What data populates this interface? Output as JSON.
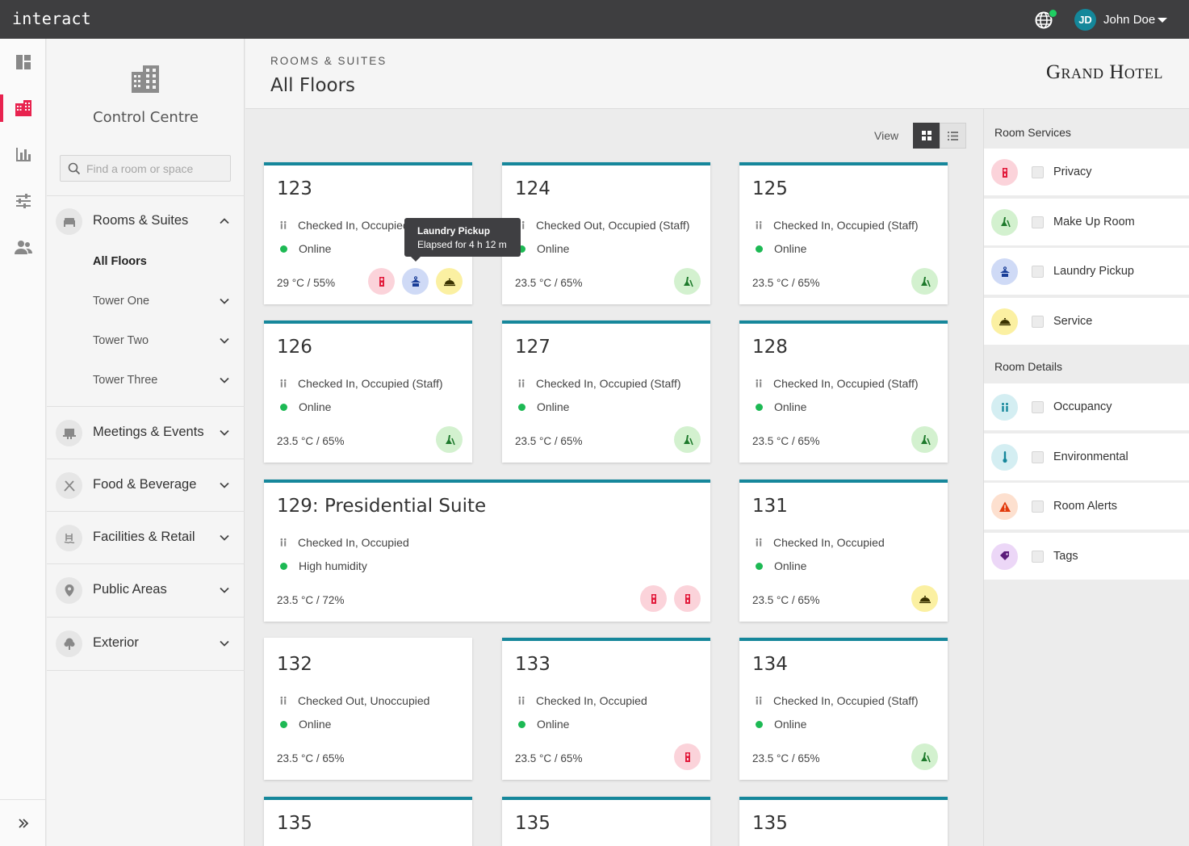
{
  "app": {
    "brand": "interact"
  },
  "user": {
    "initials": "JD",
    "name": "John Doe"
  },
  "nav": {
    "title": "Control Centre",
    "search_placeholder": "Find a room or space",
    "sections": [
      {
        "label": "Rooms & Suites",
        "icon": "bed-icon",
        "expanded": true,
        "subitems": [
          "All Floors",
          "Tower One",
          "Tower Two",
          "Tower Three"
        ]
      },
      {
        "label": "Meetings & Events",
        "icon": "presentation-icon"
      },
      {
        "label": "Food & Beverage",
        "icon": "utensils-icon"
      },
      {
        "label": "Facilities & Retail",
        "icon": "pool-icon"
      },
      {
        "label": "Public Areas",
        "icon": "location-pin-icon"
      },
      {
        "label": "Exterior",
        "icon": "tree-icon"
      }
    ]
  },
  "header": {
    "breadcrumb": "ROOMS & SUITES",
    "title": "All Floors",
    "logo_grand": "Grand",
    "logo_hotel": "Hotel"
  },
  "view": {
    "label": "View"
  },
  "cards": [
    {
      "number": "123",
      "status": "Checked In, Occupied",
      "connection": "Online",
      "env": "29 °C / 55%",
      "badges": [
        "privacy",
        "laundry",
        "service"
      ]
    },
    {
      "number": "124",
      "status": "Checked Out, Occupied (Staff)",
      "connection": "Online",
      "env": "23.5 °C / 65%",
      "badges": [
        "makeup"
      ]
    },
    {
      "number": "125",
      "status": "Checked In, Occupied (Staff)",
      "connection": "Online",
      "env": "23.5 °C / 65%",
      "badges": [
        "makeup"
      ]
    },
    {
      "number": "126",
      "status": "Checked In, Occupied (Staff)",
      "connection": "Online",
      "env": "23.5 °C / 65%",
      "badges": [
        "makeup"
      ]
    },
    {
      "number": "127",
      "status": "Checked In, Occupied (Staff)",
      "connection": "Online",
      "env": "23.5 °C / 65%",
      "badges": [
        "makeup"
      ]
    },
    {
      "number": "128",
      "status": "Checked In, Occupied (Staff)",
      "connection": "Online",
      "env": "23.5 °C / 65%",
      "badges": [
        "makeup"
      ]
    },
    {
      "number": "129: Presidential Suite",
      "status": "Checked In, Occupied",
      "connection": "High humidity",
      "env": "23.5 °C / 72%",
      "badges": [
        "privacy",
        "privacy"
      ]
    },
    {
      "number": "131",
      "status": "Checked In, Occupied",
      "connection": "Online",
      "env": "23.5 °C / 65%",
      "badges": [
        "service"
      ]
    },
    {
      "number": "132",
      "status": "Checked Out, Unoccupied",
      "connection": "Online",
      "env": "23.5 °C / 65%",
      "badges": []
    },
    {
      "number": "133",
      "status": "Checked In, Occupied",
      "connection": "Online",
      "env": "23.5 °C / 65%",
      "badges": [
        "privacy"
      ]
    },
    {
      "number": "134",
      "status": "Checked In, Occupied (Staff)",
      "connection": "Online",
      "env": "23.5 °C / 65%",
      "badges": [
        "makeup"
      ]
    },
    {
      "number": "135"
    },
    {
      "number": "135"
    },
    {
      "number": "135"
    }
  ],
  "tooltip": {
    "title": "Laundry Pickup",
    "subtitle": "Elapsed for 4 h 12 m"
  },
  "right_panel": {
    "room_services_heading": "Room Services",
    "room_services": [
      {
        "label": "Privacy",
        "badge": "privacy"
      },
      {
        "label": "Make Up Room",
        "badge": "makeup"
      },
      {
        "label": "Laundry Pickup",
        "badge": "laundry"
      },
      {
        "label": "Service",
        "badge": "service"
      }
    ],
    "room_details_heading": "Room Details",
    "room_details": [
      {
        "label": "Occupancy",
        "badge": "occ"
      },
      {
        "label": "Environmental",
        "badge": "env"
      },
      {
        "label": "Room Alerts",
        "badge": "alert"
      },
      {
        "label": "Tags",
        "badge": "tag"
      }
    ]
  },
  "colors": {
    "topbar": "#3e3e40",
    "accent_teal": "#16879b",
    "rail_active": "#e8234f",
    "online_green": "#1db954"
  }
}
